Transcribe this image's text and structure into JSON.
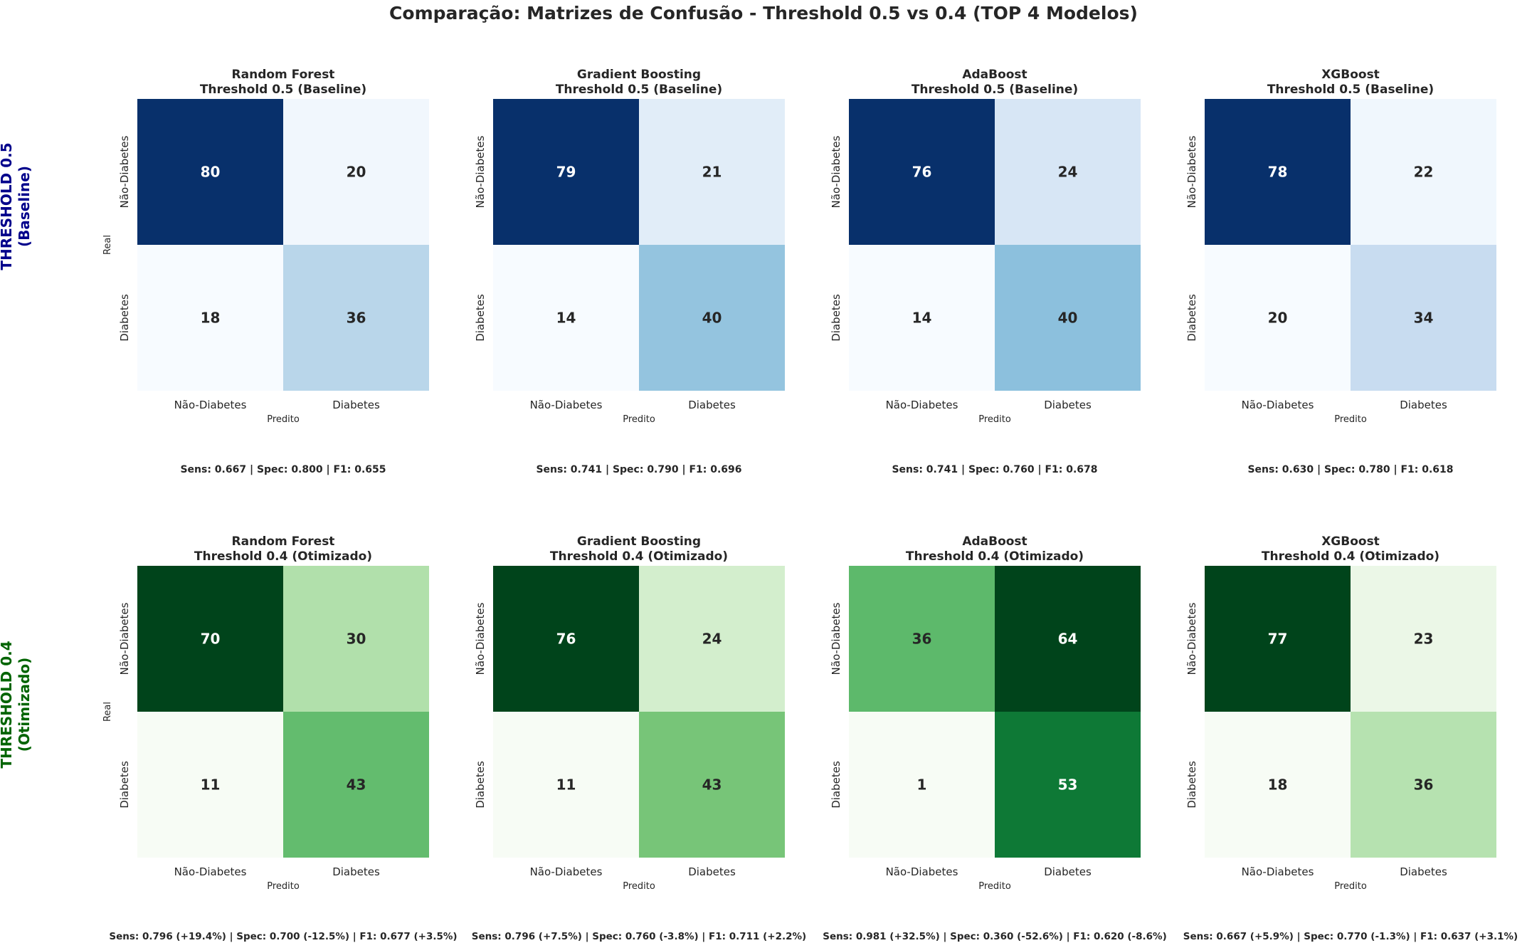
{
  "suptitle": "Comparação: Matrizes de Confusão - Threshold 0.5 vs 0.4 (TOP 4 Modelos)",
  "rows": [
    {
      "label_line1": "THRESHOLD 0.5",
      "label_line2": "(Baseline)",
      "label_color": "#00008b",
      "colormap": "Blues"
    },
    {
      "label_line1": "THRESHOLD 0.4",
      "label_line2": "(Otimizado)",
      "label_color": "#006400",
      "colormap": "Greens"
    }
  ],
  "chart_data": [
    {
      "type": "heatmap",
      "model": "Random Forest",
      "title": "Threshold 0.5 (Baseline)",
      "row": 0,
      "col": 0,
      "matrix": [
        [
          80,
          20
        ],
        [
          18,
          36
        ]
      ],
      "xticklabels": [
        "Não-Diabetes",
        "Diabetes"
      ],
      "yticklabels": [
        "Não-Diabetes",
        "Diabetes"
      ],
      "xlabel": "Predito",
      "ylabel": "Real",
      "metrics": "Sens: 0.667 | Spec: 0.800 | F1: 0.655"
    },
    {
      "type": "heatmap",
      "model": "Gradient Boosting",
      "title": "Threshold 0.5 (Baseline)",
      "row": 0,
      "col": 1,
      "matrix": [
        [
          79,
          21
        ],
        [
          14,
          40
        ]
      ],
      "xticklabels": [
        "Não-Diabetes",
        "Diabetes"
      ],
      "yticklabels": [
        "Não-Diabetes",
        "Diabetes"
      ],
      "xlabel": "Predito",
      "ylabel": "",
      "metrics": "Sens: 0.741 | Spec: 0.790 | F1: 0.696"
    },
    {
      "type": "heatmap",
      "model": "AdaBoost",
      "title": "Threshold 0.5 (Baseline)",
      "row": 0,
      "col": 2,
      "matrix": [
        [
          76,
          24
        ],
        [
          14,
          40
        ]
      ],
      "xticklabels": [
        "Não-Diabetes",
        "Diabetes"
      ],
      "yticklabels": [
        "Não-Diabetes",
        "Diabetes"
      ],
      "xlabel": "Predito",
      "ylabel": "",
      "metrics": "Sens: 0.741 | Spec: 0.760 | F1: 0.678"
    },
    {
      "type": "heatmap",
      "model": "XGBoost",
      "title": "Threshold 0.5 (Baseline)",
      "row": 0,
      "col": 3,
      "matrix": [
        [
          78,
          22
        ],
        [
          20,
          34
        ]
      ],
      "xticklabels": [
        "Não-Diabetes",
        "Diabetes"
      ],
      "yticklabels": [
        "Não-Diabetes",
        "Diabetes"
      ],
      "xlabel": "Predito",
      "ylabel": "",
      "metrics": "Sens: 0.630 | Spec: 0.780 | F1: 0.618"
    },
    {
      "type": "heatmap",
      "model": "Random Forest",
      "title": "Threshold 0.4 (Otimizado)",
      "row": 1,
      "col": 0,
      "matrix": [
        [
          70,
          30
        ],
        [
          11,
          43
        ]
      ],
      "xticklabels": [
        "Não-Diabetes",
        "Diabetes"
      ],
      "yticklabels": [
        "Não-Diabetes",
        "Diabetes"
      ],
      "xlabel": "Predito",
      "ylabel": "Real",
      "metrics": "Sens: 0.796 (+19.4%) | Spec: 0.700 (-12.5%) | F1: 0.677 (+3.5%)"
    },
    {
      "type": "heatmap",
      "model": "Gradient Boosting",
      "title": "Threshold 0.4 (Otimizado)",
      "row": 1,
      "col": 1,
      "matrix": [
        [
          76,
          24
        ],
        [
          11,
          43
        ]
      ],
      "xticklabels": [
        "Não-Diabetes",
        "Diabetes"
      ],
      "yticklabels": [
        "Não-Diabetes",
        "Diabetes"
      ],
      "xlabel": "Predito",
      "ylabel": "",
      "metrics": "Sens: 0.796 (+7.5%) | Spec: 0.760 (-3.8%) | F1: 0.711 (+2.2%)"
    },
    {
      "type": "heatmap",
      "model": "AdaBoost",
      "title": "Threshold 0.4 (Otimizado)",
      "row": 1,
      "col": 2,
      "matrix": [
        [
          36,
          64
        ],
        [
          1,
          53
        ]
      ],
      "xticklabels": [
        "Não-Diabetes",
        "Diabetes"
      ],
      "yticklabels": [
        "Não-Diabetes",
        "Diabetes"
      ],
      "xlabel": "Predito",
      "ylabel": "",
      "metrics": "Sens: 0.981 (+32.5%) | Spec: 0.360 (-52.6%) | F1: 0.620 (-8.6%)"
    },
    {
      "type": "heatmap",
      "model": "XGBoost",
      "title": "Threshold 0.4 (Otimizado)",
      "row": 1,
      "col": 3,
      "matrix": [
        [
          77,
          23
        ],
        [
          18,
          36
        ]
      ],
      "xticklabels": [
        "Não-Diabetes",
        "Diabetes"
      ],
      "yticklabels": [
        "Não-Diabetes",
        "Diabetes"
      ],
      "xlabel": "Predito",
      "ylabel": "",
      "metrics": "Sens: 0.667 (+5.9%) | Spec: 0.770 (-1.3%) | F1: 0.637 (+3.1%)"
    }
  ]
}
